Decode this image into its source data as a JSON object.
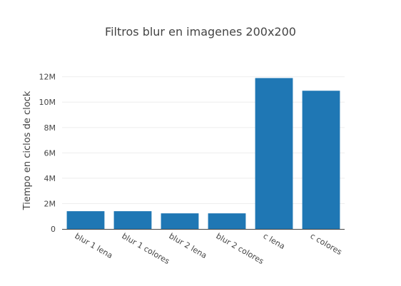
{
  "chart_data": {
    "type": "bar",
    "title": "Filtros blur en imagenes 200x200",
    "xlabel": "",
    "ylabel": "Tiempo en ciclos de clock",
    "categories": [
      "blur 1 lena",
      "blur 1 colores",
      "blur 2 lena",
      "blur 2 colores",
      "c lena",
      "c colores"
    ],
    "values": [
      1400000,
      1400000,
      1230000,
      1230000,
      11900000,
      10900000
    ],
    "ylim": [
      0,
      12600000
    ],
    "yticks": [
      0,
      2000000,
      4000000,
      6000000,
      8000000,
      10000000,
      12000000
    ],
    "ytick_labels": [
      "0",
      "2M",
      "4M",
      "6M",
      "8M",
      "10M",
      "12M"
    ],
    "grid": true,
    "bar_color": "#1f77b4",
    "grid_color": "#eeeeee",
    "axis_color": "#444444"
  }
}
